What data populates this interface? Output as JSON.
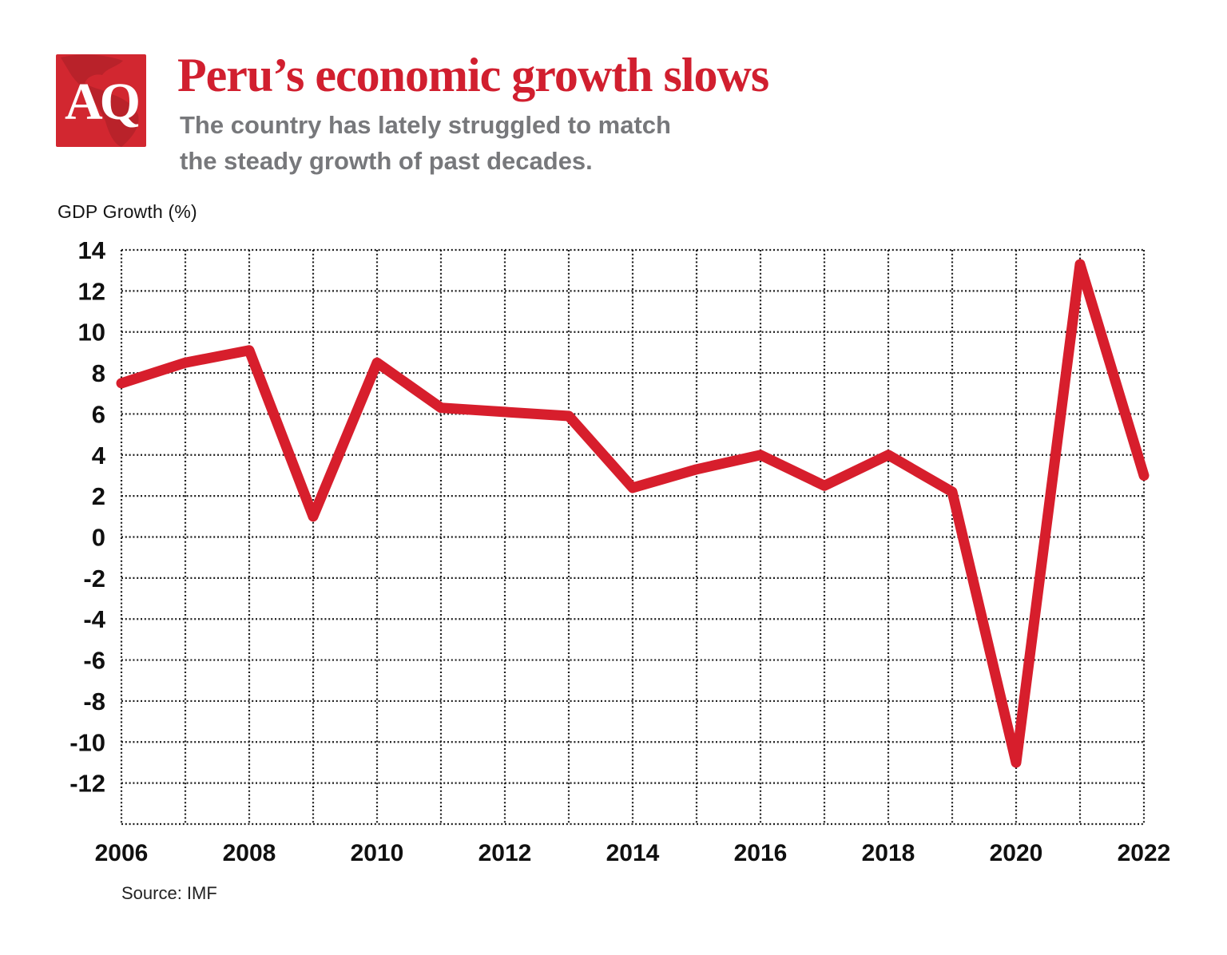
{
  "header": {
    "logo_text": "AQ",
    "title": "Peru’s economic growth slows",
    "subtitle_line1": "The country has lately struggled to match",
    "subtitle_line2": "the steady growth of past decades."
  },
  "axis_label": "GDP Growth (%)",
  "source": "Source: IMF",
  "colors": {
    "brand_red": "#d22730",
    "map_red": "#9f1d24",
    "title_red": "#d11f2f",
    "line_red": "#d71e2c",
    "subtitle_gray": "#77787b",
    "grid_black": "#1c1c1c",
    "label_black": "#101010"
  },
  "chart_data": {
    "type": "line",
    "title": "Peru’s economic growth slows",
    "subtitle": "The country has lately struggled to match the steady growth of past decades.",
    "ylabel": "GDP Growth (%)",
    "xlabel": "",
    "x": [
      2006,
      2007,
      2008,
      2009,
      2010,
      2011,
      2012,
      2013,
      2014,
      2015,
      2016,
      2017,
      2018,
      2019,
      2020,
      2021,
      2022
    ],
    "values": [
      7.5,
      8.5,
      9.1,
      1.0,
      8.5,
      6.3,
      6.1,
      5.9,
      2.4,
      3.3,
      4.0,
      2.5,
      4.0,
      2.2,
      -11.0,
      13.3,
      3.0
    ],
    "series_name": "GDP Growth (%)",
    "ylim": [
      -14,
      14
    ],
    "yticks": [
      14,
      12,
      10,
      8,
      6,
      4,
      2,
      0,
      -2,
      -4,
      -6,
      -8,
      -10,
      -12
    ],
    "xticks": [
      2006,
      2008,
      2010,
      2012,
      2014,
      2016,
      2018,
      2020,
      2022
    ],
    "grid": "dotted",
    "legend": "none",
    "source": "Source: IMF"
  }
}
